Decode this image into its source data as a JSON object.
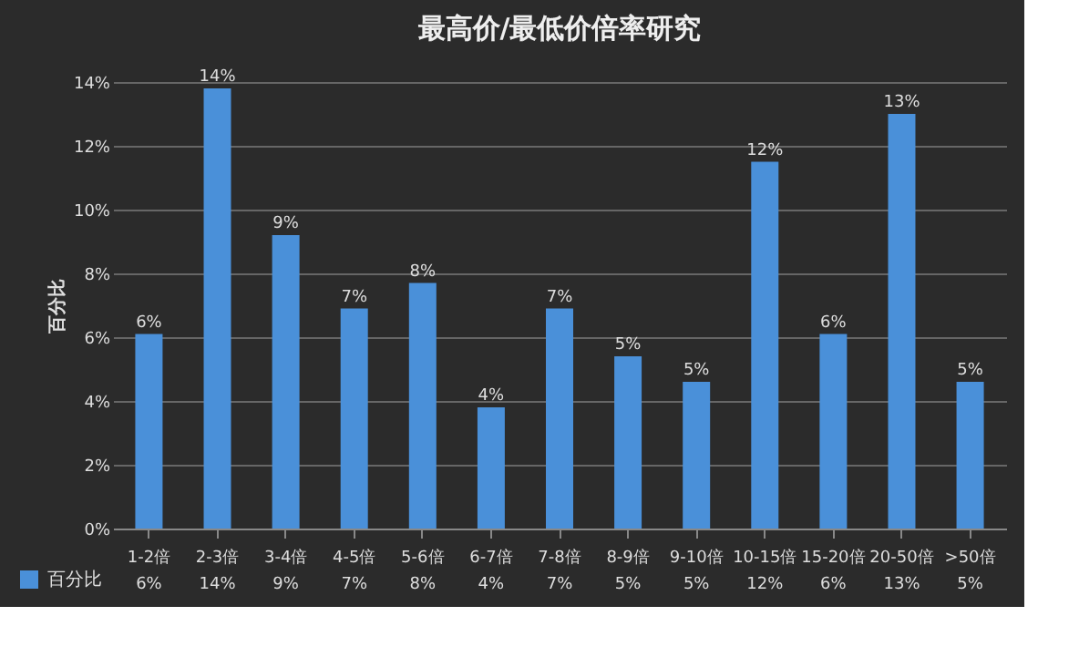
{
  "chart_data": {
    "type": "bar",
    "title": "最高价/最低价倍率研究",
    "ylabel": "百分比",
    "categories": [
      "1-2倍",
      "2-3倍",
      "3-4倍",
      "4-5倍",
      "5-6倍",
      "6-7倍",
      "7-8倍",
      "8-9倍",
      "9-10倍",
      "10-15倍",
      "15-20倍",
      "20-50倍",
      ">50倍"
    ],
    "series": [
      {
        "name": "百分比",
        "color": "#4a90d9",
        "values": [
          6.1,
          13.8,
          9.2,
          6.9,
          7.7,
          3.8,
          6.9,
          5.4,
          4.6,
          11.5,
          6.1,
          13.0,
          4.6
        ],
        "value_labels": [
          "6%",
          "14%",
          "9%",
          "7%",
          "8%",
          "4%",
          "7%",
          "5%",
          "5%",
          "12%",
          "6%",
          "13%",
          "5%"
        ]
      }
    ],
    "ylim": [
      0,
      14
    ],
    "yticks": [
      {
        "value": 0,
        "label": "0%"
      },
      {
        "value": 2,
        "label": "2%"
      },
      {
        "value": 4,
        "label": "4%"
      },
      {
        "value": 6,
        "label": "6%"
      },
      {
        "value": 8,
        "label": "8%"
      },
      {
        "value": 10,
        "label": "10%"
      },
      {
        "value": 12,
        "label": "12%"
      },
      {
        "value": 14,
        "label": "14%"
      }
    ],
    "grid": "y",
    "legend": "bottom left"
  }
}
